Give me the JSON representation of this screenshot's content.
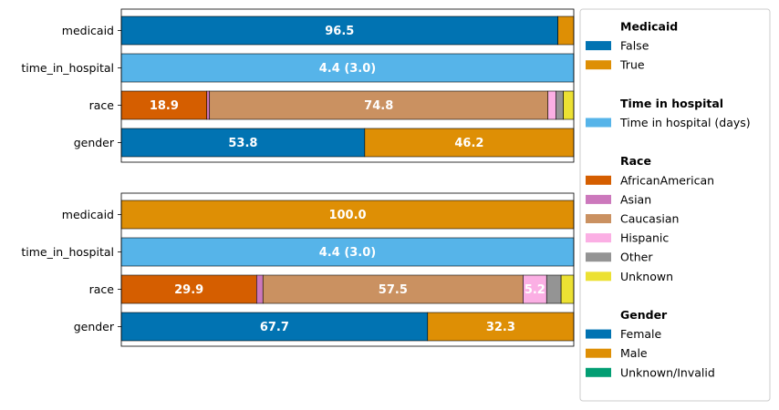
{
  "chart_data": {
    "type": "bar",
    "orientation": "horizontal-stacked-100",
    "legend_position": "right",
    "panels": [
      {
        "rows": [
          {
            "label": "medicaid",
            "segments": [
              {
                "group": "Medicaid",
                "category": "False",
                "value": 96.5,
                "text": "96.5"
              },
              {
                "group": "Medicaid",
                "category": "True",
                "value": 3.5,
                "text": ""
              }
            ]
          },
          {
            "label": "time_in_hospital",
            "segments": [
              {
                "group": "Time in hospital",
                "category": "Time in hospital (days)",
                "value": 100,
                "text": "4.4 (3.0)"
              }
            ]
          },
          {
            "label": "race",
            "segments": [
              {
                "group": "Race",
                "category": "AfricanAmerican",
                "value": 18.9,
                "text": "18.9"
              },
              {
                "group": "Race",
                "category": "Asian",
                "value": 0.6,
                "text": ""
              },
              {
                "group": "Race",
                "category": "Caucasian",
                "value": 74.8,
                "text": "74.8"
              },
              {
                "group": "Race",
                "category": "Hispanic",
                "value": 1.8,
                "text": ""
              },
              {
                "group": "Race",
                "category": "Other",
                "value": 1.6,
                "text": ""
              },
              {
                "group": "Race",
                "category": "Unknown",
                "value": 2.3,
                "text": ""
              }
            ]
          },
          {
            "label": "gender",
            "segments": [
              {
                "group": "Gender",
                "category": "Female",
                "value": 53.8,
                "text": "53.8"
              },
              {
                "group": "Gender",
                "category": "Male",
                "value": 46.2,
                "text": "46.2"
              }
            ]
          }
        ]
      },
      {
        "rows": [
          {
            "label": "medicaid",
            "segments": [
              {
                "group": "Medicaid",
                "category": "True",
                "value": 100.0,
                "text": "100.0"
              }
            ]
          },
          {
            "label": "time_in_hospital",
            "segments": [
              {
                "group": "Time in hospital",
                "category": "Time in hospital (days)",
                "value": 100,
                "text": "4.4 (3.0)"
              }
            ]
          },
          {
            "label": "race",
            "segments": [
              {
                "group": "Race",
                "category": "AfricanAmerican",
                "value": 29.9,
                "text": "29.9"
              },
              {
                "group": "Race",
                "category": "Asian",
                "value": 1.4,
                "text": ""
              },
              {
                "group": "Race",
                "category": "Caucasian",
                "value": 57.5,
                "text": "57.5"
              },
              {
                "group": "Race",
                "category": "Hispanic",
                "value": 5.2,
                "text": "5.2"
              },
              {
                "group": "Race",
                "category": "Other",
                "value": 3.2,
                "text": ""
              },
              {
                "group": "Race",
                "category": "Unknown",
                "value": 2.8,
                "text": ""
              }
            ]
          },
          {
            "label": "gender",
            "segments": [
              {
                "group": "Gender",
                "category": "Female",
                "value": 67.7,
                "text": "67.7"
              },
              {
                "group": "Gender",
                "category": "Male",
                "value": 32.3,
                "text": "32.3"
              }
            ]
          }
        ]
      }
    ],
    "legend": [
      {
        "title": "Medicaid",
        "items": [
          {
            "label": "False",
            "color": "#0173b2"
          },
          {
            "label": "True",
            "color": "#de8f05"
          }
        ]
      },
      {
        "title": "Time in hospital",
        "items": [
          {
            "label": "Time in hospital (days)",
            "color": "#56b4e9"
          }
        ]
      },
      {
        "title": "Race",
        "items": [
          {
            "label": "AfricanAmerican",
            "color": "#d55e00"
          },
          {
            "label": "Asian",
            "color": "#cc78bc"
          },
          {
            "label": "Caucasian",
            "color": "#ca9161"
          },
          {
            "label": "Hispanic",
            "color": "#fbafe4"
          },
          {
            "label": "Other",
            "color": "#949494"
          },
          {
            "label": "Unknown",
            "color": "#ece133"
          }
        ]
      },
      {
        "title": "Gender",
        "items": [
          {
            "label": "Female",
            "color": "#0173b2"
          },
          {
            "label": "Male",
            "color": "#de8f05"
          },
          {
            "label": "Unknown/Invalid",
            "color": "#029e73"
          }
        ]
      }
    ]
  }
}
